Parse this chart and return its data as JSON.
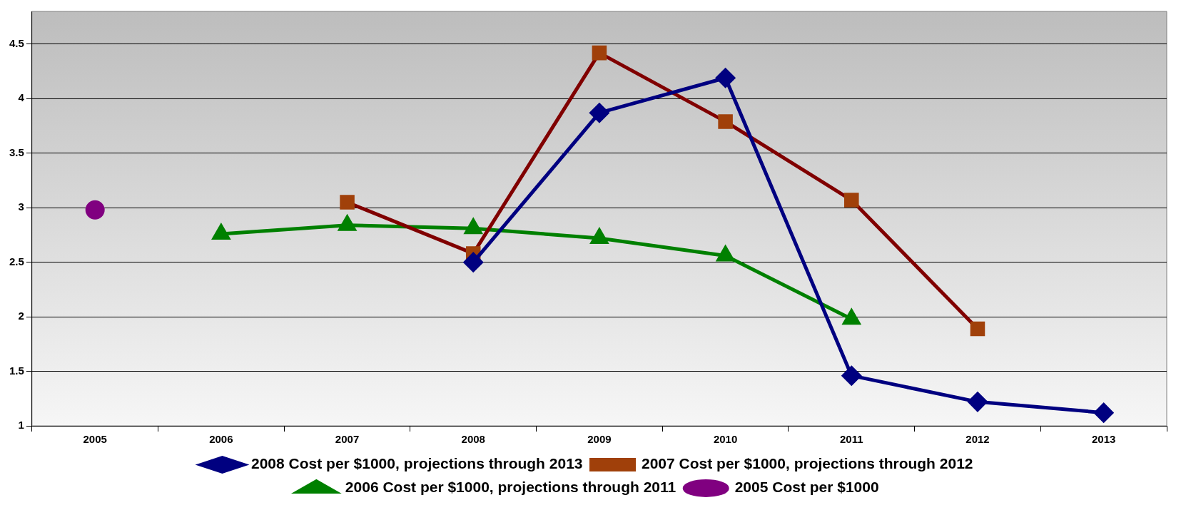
{
  "chart_data": {
    "type": "line",
    "categories": [
      "2005",
      "2006",
      "2007",
      "2008",
      "2009",
      "2010",
      "2011",
      "2012",
      "2013"
    ],
    "series": [
      {
        "name": "2008 Cost per $1000, projections through 2013",
        "color": "#000080",
        "marker": "diamond",
        "values": [
          null,
          null,
          null,
          2.5,
          3.87,
          4.19,
          1.46,
          1.22,
          1.12
        ]
      },
      {
        "name": "2007 Cost per $1000, projections through 2012",
        "color": "#800000",
        "marker": "square",
        "values": [
          null,
          null,
          3.05,
          2.58,
          4.42,
          3.79,
          3.07,
          1.89,
          null
        ]
      },
      {
        "name": "2006 Cost per $1000, projections through 2011",
        "color": "#008000",
        "marker": "triangle",
        "values": [
          null,
          2.76,
          2.84,
          2.81,
          2.72,
          2.56,
          1.98,
          null,
          null
        ]
      },
      {
        "name": "2005 Cost per $1000",
        "color": "#800080",
        "marker": "circle",
        "values": [
          2.98,
          null,
          null,
          null,
          null,
          null,
          null,
          null,
          null
        ]
      }
    ],
    "ylim": [
      1,
      4.8
    ],
    "yticks": [
      1,
      1.5,
      2,
      2.5,
      3,
      3.5,
      4,
      4.5
    ],
    "grid": "y",
    "legend": "bottom",
    "line_style": "solid"
  }
}
